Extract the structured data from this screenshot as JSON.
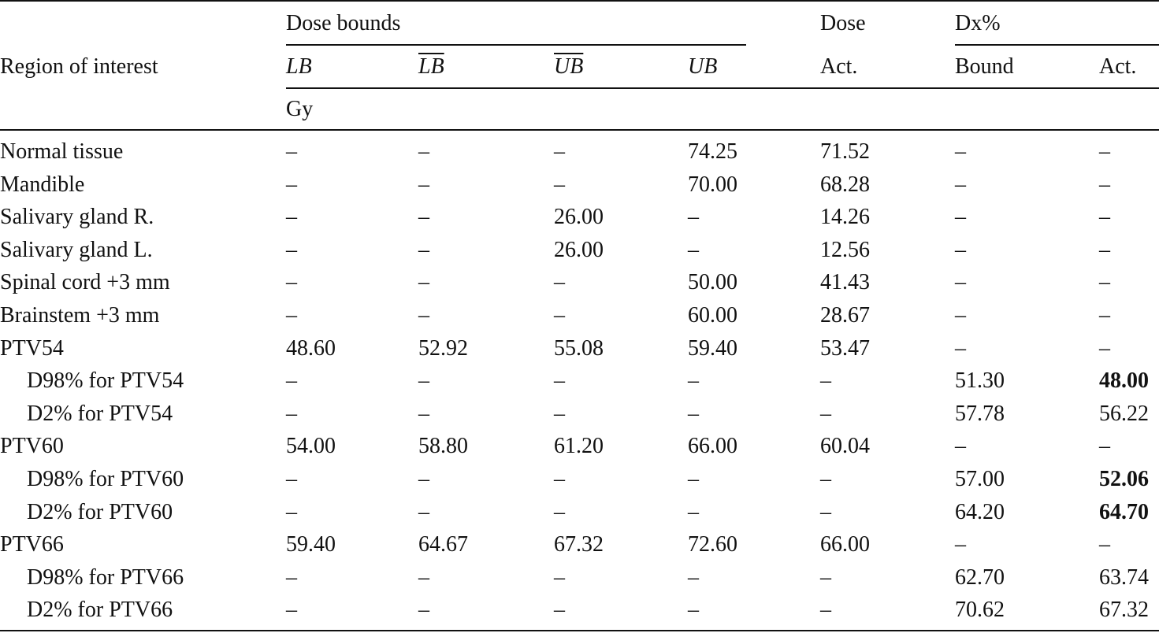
{
  "table": {
    "header": {
      "region": "Region of interest",
      "dose_bounds": "Dose bounds",
      "dose": "Dose",
      "dx": "Dx%",
      "columns": [
        "LB",
        "LB",
        "UB",
        "UB",
        "Act.",
        "Bound",
        "Act."
      ],
      "unit": "Gy"
    },
    "rows": [
      [
        "Normal tissue",
        "–",
        "–",
        "–",
        "74.25",
        "71.52",
        "–",
        "–"
      ],
      [
        "Mandible",
        "–",
        "–",
        "–",
        "70.00",
        "68.28",
        "–",
        "–"
      ],
      [
        "Salivary gland R.",
        "–",
        "–",
        "26.00",
        "–",
        "14.26",
        "–",
        "–"
      ],
      [
        "Salivary gland L.",
        "–",
        "–",
        "26.00",
        "–",
        "12.56",
        "–",
        "–"
      ],
      [
        "Spinal cord +3 mm",
        "–",
        "–",
        "–",
        "50.00",
        "41.43",
        "–",
        "–"
      ],
      [
        "Brainstem +3 mm",
        "–",
        "–",
        "–",
        "60.00",
        "28.67",
        "–",
        "–"
      ],
      [
        "PTV54",
        "48.60",
        "52.92",
        "55.08",
        "59.40",
        "53.47",
        "–",
        "–"
      ],
      [
        "D98% for PTV54",
        "–",
        "–",
        "–",
        "–",
        "–",
        "51.30",
        "48.00"
      ],
      [
        "D2% for PTV54",
        "–",
        "–",
        "–",
        "–",
        "–",
        "57.78",
        "56.22"
      ],
      [
        "PTV60",
        "54.00",
        "58.80",
        "61.20",
        "66.00",
        "60.04",
        "–",
        "–"
      ],
      [
        "D98% for PTV60",
        "–",
        "–",
        "–",
        "–",
        "–",
        "57.00",
        "52.06"
      ],
      [
        "D2% for PTV60",
        "–",
        "–",
        "–",
        "–",
        "–",
        "64.20",
        "64.70"
      ],
      [
        "PTV66",
        "59.40",
        "64.67",
        "67.32",
        "72.60",
        "66.00",
        "–",
        "–"
      ],
      [
        "D98% for PTV66",
        "–",
        "–",
        "–",
        "–",
        "–",
        "62.70",
        "63.74"
      ],
      [
        "D2% for PTV66",
        "–",
        "–",
        "–",
        "–",
        "–",
        "70.62",
        "67.32"
      ]
    ]
  }
}
